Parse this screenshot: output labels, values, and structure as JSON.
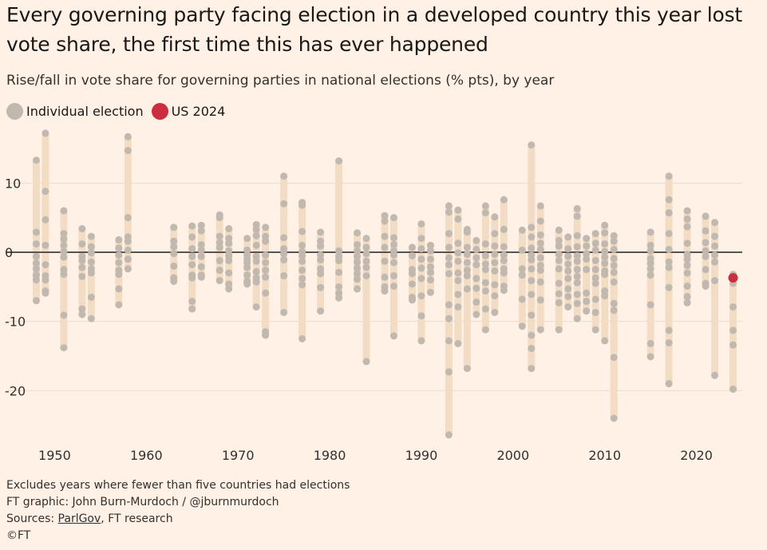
{
  "header": {
    "title": "Every governing party facing election in a developed country this year lost vote share, the first time this has ever happened",
    "subtitle": "Rise/fall in vote share for governing parties in national elections (% pts), by year"
  },
  "legend": {
    "individual_label": "Individual election",
    "us_label": "US 2024"
  },
  "colors": {
    "individual": "#c1b8b0",
    "us": "#cc2e3f",
    "range_bar": "#f3dcc4",
    "zero_line": "#5a5150",
    "grid": "#e9dccf",
    "background": "#fff1e5"
  },
  "footer": {
    "note": "Excludes years where fewer than five countries had elections",
    "graphic": "FT graphic: John Burn-Murdoch / @jburnmurdoch",
    "sources_prefix": "Sources: ",
    "sources_link": "ParlGov",
    "sources_suffix": ", FT research",
    "copyright": "©FT"
  },
  "chart_data": {
    "type": "scatter",
    "title": "Every governing party facing election in a developed country this year lost vote share, the first time this has ever happened",
    "subtitle": "Rise/fall in vote share for governing parties in national elections (% pts), by year",
    "xlabel": "",
    "ylabel": "",
    "xlim": [
      1947.7,
      2025
    ],
    "ylim": [
      -27,
      18
    ],
    "x_ticks": [
      1950,
      1960,
      1970,
      1980,
      1990,
      2000,
      2010,
      2020
    ],
    "y_ticks": [
      10,
      0,
      -10,
      -20
    ],
    "grid": true,
    "legend_position": "top-left",
    "series": [
      {
        "name": "Individual election",
        "points": [
          {
            "year": 1948,
            "values": [
              13.3,
              2.9,
              1.2,
              -0.6,
              -1.6,
              -2.4,
              -3.3,
              -4.0,
              -7.0
            ]
          },
          {
            "year": 1949,
            "values": [
              17.2,
              8.8,
              4.7,
              1.0,
              -1.8,
              -3.4,
              -4.0,
              -5.6,
              -5.9
            ]
          },
          {
            "year": 1951,
            "values": [
              6.0,
              2.7,
              1.9,
              1.0,
              0.1,
              -0.7,
              -2.5,
              -3.2,
              -9.1,
              -13.8
            ]
          },
          {
            "year": 1953,
            "values": [
              3.4,
              1.2,
              -0.6,
              -1.2,
              -2.2,
              -3.5,
              -8.2,
              -9.0
            ]
          },
          {
            "year": 1954,
            "values": [
              2.3,
              0.8,
              -0.1,
              -1.4,
              -2.4,
              -3.0,
              -6.5,
              -9.6
            ]
          },
          {
            "year": 1957,
            "values": [
              1.8,
              0.6,
              -0.4,
              -1.5,
              -2.6,
              -3.2,
              -5.3,
              -7.6
            ]
          },
          {
            "year": 1958,
            "values": [
              16.7,
              14.7,
              5.0,
              2.2,
              1.6,
              0.3,
              -1.0,
              -2.4
            ]
          },
          {
            "year": 1963,
            "values": [
              3.6,
              1.6,
              0.8,
              -0.2,
              -2.0,
              -3.7,
              -4.2
            ]
          },
          {
            "year": 1965,
            "values": [
              3.8,
              2.2,
              0.5,
              -0.6,
              -1.8,
              -3.3,
              -3.7,
              -7.1,
              -8.2
            ]
          },
          {
            "year": 1966,
            "values": [
              3.9,
              3.1,
              1.1,
              0.3,
              -0.6,
              -2.1,
              -3.3,
              -3.6
            ]
          },
          {
            "year": 1968,
            "values": [
              5.4,
              5.0,
              2.3,
              1.4,
              0.7,
              -1.2,
              -2.6,
              -4.1
            ]
          },
          {
            "year": 1969,
            "values": [
              3.4,
              2.0,
              1.3,
              0.2,
              -0.5,
              -1.2,
              -3.0,
              -4.6,
              -5.3
            ]
          },
          {
            "year": 1971,
            "values": [
              2.0,
              0.3,
              -0.4,
              -1.0,
              -1.5,
              -2.2,
              -3.3,
              -4.2,
              -4.6
            ]
          },
          {
            "year": 1972,
            "values": [
              4.0,
              3.3,
              2.4,
              1.0,
              -0.6,
              -1.3,
              -2.8,
              -3.7,
              -4.3,
              -7.9
            ]
          },
          {
            "year": 1973,
            "values": [
              3.6,
              2.3,
              1.6,
              -0.4,
              -1.5,
              -2.6,
              -3.6,
              -5.9,
              -11.5,
              -12.0
            ]
          },
          {
            "year": 1975,
            "values": [
              11.0,
              7.0,
              2.1,
              0.5,
              -0.2,
              -1.1,
              -3.4,
              -8.7
            ]
          },
          {
            "year": 1977,
            "values": [
              7.2,
              6.8,
              3.0,
              1.0,
              0.1,
              -0.5,
              -1.3,
              -2.6,
              -3.8,
              -4.7,
              -12.5
            ]
          },
          {
            "year": 1979,
            "values": [
              2.9,
              1.6,
              0.9,
              -0.4,
              -1.1,
              -2.4,
              -3.1,
              -5.1,
              -8.5
            ]
          },
          {
            "year": 1981,
            "values": [
              13.2,
              0.2,
              -0.6,
              -1.2,
              -2.9,
              -5.0,
              -5.9,
              -6.6
            ]
          },
          {
            "year": 1983,
            "values": [
              2.8,
              1.1,
              0.2,
              -0.6,
              -1.4,
              -2.3,
              -3.1,
              -3.9,
              -5.3
            ]
          },
          {
            "year": 1984,
            "values": [
              2.0,
              0.7,
              -0.2,
              -1.3,
              -2.2,
              -3.4,
              -15.8
            ]
          },
          {
            "year": 1986,
            "values": [
              5.3,
              4.5,
              2.3,
              0.7,
              -1.3,
              -3.6,
              -5.0,
              -5.6
            ]
          },
          {
            "year": 1987,
            "values": [
              5.0,
              2.1,
              1.1,
              0.2,
              -0.4,
              -1.5,
              -3.4,
              -4.9,
              -12.1
            ]
          },
          {
            "year": 1989,
            "values": [
              0.7,
              -0.5,
              -2.5,
              -3.1,
              -4.6,
              -6.5,
              -6.9
            ]
          },
          {
            "year": 1990,
            "values": [
              4.1,
              2.0,
              0.5,
              -1.0,
              -2.3,
              -3.8,
              -6.3,
              -9.2,
              -12.8
            ]
          },
          {
            "year": 1991,
            "values": [
              1.0,
              0.2,
              -1.0,
              -2.1,
              -2.9,
              -4.0,
              -5.8
            ]
          },
          {
            "year": 1993,
            "values": [
              6.7,
              5.8,
              2.7,
              0.7,
              -0.8,
              -1.8,
              -3.1,
              -7.6,
              -9.6,
              -12.8,
              -17.3,
              -26.4
            ]
          },
          {
            "year": 1994,
            "values": [
              6.1,
              4.8,
              1.3,
              -0.1,
              -1.3,
              -3.0,
              -4.1,
              -6.1,
              -7.9,
              -13.2
            ]
          },
          {
            "year": 1995,
            "values": [
              3.3,
              2.9,
              0.7,
              -0.3,
              -1.5,
              -2.6,
              -3.4,
              -5.3,
              -16.8
            ]
          },
          {
            "year": 1996,
            "values": [
              1.7,
              0.4,
              -0.8,
              -1.8,
              -3.8,
              -5.2,
              -7.2,
              -9.0
            ]
          },
          {
            "year": 1997,
            "values": [
              6.7,
              5.7,
              1.2,
              -0.5,
              -1.7,
              -2.5,
              -4.4,
              -5.6,
              -8.2,
              -11.2
            ]
          },
          {
            "year": 1998,
            "values": [
              5.1,
              2.7,
              0.9,
              -0.3,
              -1.5,
              -2.7,
              -4.7,
              -6.3,
              -8.7
            ]
          },
          {
            "year": 1999,
            "values": [
              7.6,
              3.3,
              0.8,
              -0.4,
              -1.2,
              -2.4,
              -3.0,
              -4.9,
              -5.5
            ]
          },
          {
            "year": 2001,
            "values": [
              3.2,
              0.3,
              -2.4,
              -3.3,
              -6.8,
              -10.7
            ]
          },
          {
            "year": 2002,
            "values": [
              15.5,
              3.6,
              2.2,
              0.6,
              -0.4,
              -1.1,
              -2.4,
              -4.1,
              -6.1,
              -9.1,
              -12.0,
              -13.9,
              -16.8
            ]
          },
          {
            "year": 2003,
            "values": [
              6.7,
              4.5,
              2.5,
              1.3,
              0.4,
              -0.8,
              -1.9,
              -2.6,
              -4.3,
              -6.9,
              -11.2
            ]
          },
          {
            "year": 2005,
            "values": [
              3.2,
              1.7,
              0.9,
              -0.3,
              -1.2,
              -2.4,
              -4.5,
              -6.0,
              -7.3,
              -11.2
            ]
          },
          {
            "year": 2006,
            "values": [
              2.2,
              0.5,
              -0.6,
              -1.7,
              -2.7,
              -3.8,
              -5.3,
              -6.4,
              -7.9
            ]
          },
          {
            "year": 2007,
            "values": [
              6.3,
              5.2,
              2.4,
              0.8,
              -0.5,
              -1.3,
              -2.5,
              -3.5,
              -4.4,
              -6.1,
              -7.4,
              -9.6
            ]
          },
          {
            "year": 2008,
            "values": [
              2.0,
              0.9,
              -0.2,
              -1.0,
              -2.5,
              -5.9,
              -7.1,
              -8.5
            ]
          },
          {
            "year": 2009,
            "values": [
              2.7,
              1.3,
              0.3,
              -1.2,
              -2.5,
              -3.7,
              -4.5,
              -6.8,
              -8.7,
              -11.2
            ]
          },
          {
            "year": 2010,
            "values": [
              3.9,
              2.8,
              1.2,
              0.1,
              -0.7,
              -1.6,
              -2.7,
              -3.2,
              -5.6,
              -6.3,
              -12.8
            ]
          },
          {
            "year": 2011,
            "values": [
              2.4,
              1.6,
              0.4,
              -0.9,
              -1.9,
              -2.9,
              -4.3,
              -7.4,
              -8.4,
              -15.2,
              -24.0
            ]
          },
          {
            "year": 2015,
            "values": [
              2.9,
              1.0,
              0.2,
              -0.9,
              -1.6,
              -2.4,
              -3.3,
              -7.6,
              -13.2,
              -15.1
            ]
          },
          {
            "year": 2017,
            "values": [
              11.0,
              7.6,
              5.7,
              2.7,
              0.4,
              -1.4,
              -2.2,
              -5.1,
              -11.3,
              -13.1,
              -19.0
            ]
          },
          {
            "year": 2019,
            "values": [
              6.0,
              4.8,
              3.7,
              1.3,
              -0.3,
              -1.0,
              -1.9,
              -3.0,
              -4.9,
              -6.4,
              -7.3
            ]
          },
          {
            "year": 2021,
            "values": [
              5.2,
              3.1,
              1.4,
              0.2,
              -0.6,
              -2.5,
              -4.5,
              -4.9
            ]
          },
          {
            "year": 2022,
            "values": [
              4.3,
              2.3,
              0.9,
              -0.4,
              -1.4,
              -4.1,
              -17.8
            ]
          },
          {
            "year": 2024,
            "values": [
              -3.2,
              -4.5,
              -7.9,
              -11.3,
              -13.4,
              -19.8
            ]
          }
        ]
      },
      {
        "name": "US 2024",
        "points": [
          {
            "year": 2024,
            "values": [
              -3.7
            ]
          }
        ]
      }
    ]
  }
}
